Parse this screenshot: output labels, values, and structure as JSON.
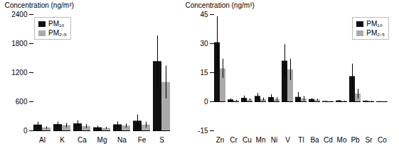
{
  "chart_data": [
    {
      "type": "bar",
      "categories": [
        "Al",
        "K",
        "Ca",
        "Mg",
        "Na",
        "Fe",
        "S"
      ],
      "series": [
        {
          "name": "PM₁₀",
          "color": "#111111",
          "values": [
            120,
            130,
            145,
            65,
            125,
            200,
            1430
          ],
          "errors": [
            60,
            55,
            65,
            30,
            60,
            130,
            530
          ]
        },
        {
          "name": "PM₂.₅",
          "color": "#aaaaaa",
          "values": [
            60,
            110,
            90,
            50,
            100,
            120,
            1000
          ],
          "errors": [
            25,
            45,
            40,
            20,
            45,
            60,
            340
          ]
        }
      ],
      "y_label": "Concentration (ng/m³)",
      "ylim": [
        0,
        2400
      ],
      "yticks": [
        0,
        600,
        1200,
        1800,
        2400
      ],
      "legend": "upper left",
      "grid": false
    },
    {
      "type": "bar",
      "categories": [
        "Zn",
        "Cr",
        "Cu",
        "Mn",
        "Ni",
        "V",
        "Tl",
        "Ba",
        "Cd",
        "Mo",
        "Pb",
        "Sr",
        "Co"
      ],
      "series": [
        {
          "name": "PM₁₀",
          "color": "#111111",
          "values": [
            30.5,
            1.0,
            1.8,
            2.8,
            2.2,
            21.0,
            2.3,
            1.2,
            0.15,
            0.45,
            13.0,
            0.3,
            0.05
          ],
          "errors": [
            13.5,
            0.5,
            1.2,
            1.5,
            1.5,
            8.5,
            2.5,
            0.5,
            0.1,
            0.3,
            6.5,
            0.2,
            0.05
          ]
        },
        {
          "name": "PM₂.₅",
          "color": "#aaaaaa",
          "values": [
            17.0,
            0.5,
            1.0,
            1.2,
            1.2,
            16.5,
            1.5,
            0.9,
            0.1,
            0.2,
            4.0,
            0.2,
            0.05
          ],
          "errors": [
            5.0,
            0.3,
            0.6,
            0.8,
            1.0,
            5.5,
            1.2,
            0.4,
            0.08,
            0.15,
            2.5,
            0.15,
            0.03
          ]
        }
      ],
      "y_label": "Concentration (ng/m³)",
      "ylim": [
        -15,
        45
      ],
      "yticks": [
        -15,
        0,
        15,
        30,
        45
      ],
      "legend": "upper right",
      "grid": false
    }
  ]
}
